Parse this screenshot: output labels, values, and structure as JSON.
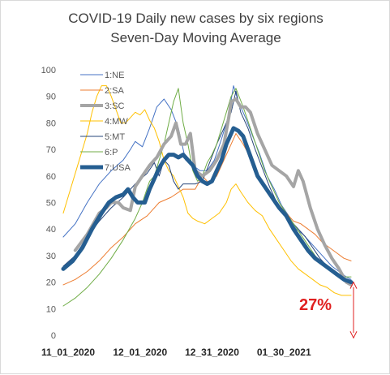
{
  "chart_data": {
    "type": "line",
    "title": "COVID-19 Daily new cases by six regions",
    "subtitle": "Seven-Day Moving Average",
    "ylim": [
      0,
      100
    ],
    "y_ticks": [
      0,
      10,
      20,
      30,
      40,
      50,
      60,
      70,
      80,
      90,
      100
    ],
    "x_tick_labels": [
      "11_01_2020",
      "12_01_2020",
      "12_31_2020",
      "01_30_2021"
    ],
    "x_tick_index": [
      0,
      30,
      60,
      90
    ],
    "x_range": [
      0,
      120
    ],
    "grid": false,
    "legend_position": "top-left",
    "annotation": {
      "text": "27%",
      "color": "#e02020"
    },
    "series": [
      {
        "name": "1:NE",
        "color": "#4472c4",
        "width": 1,
        "points": [
          [
            0,
            37
          ],
          [
            5,
            42
          ],
          [
            10,
            50
          ],
          [
            15,
            57
          ],
          [
            20,
            62
          ],
          [
            25,
            66
          ],
          [
            28,
            70
          ],
          [
            30,
            73
          ],
          [
            33,
            71
          ],
          [
            36,
            78
          ],
          [
            39,
            86
          ],
          [
            42,
            89
          ],
          [
            45,
            85
          ],
          [
            48,
            78
          ],
          [
            51,
            66
          ],
          [
            54,
            64
          ],
          [
            57,
            62
          ],
          [
            60,
            62
          ],
          [
            63,
            66
          ],
          [
            66,
            74
          ],
          [
            69,
            83
          ],
          [
            71,
            94
          ],
          [
            73,
            88
          ],
          [
            76,
            82
          ],
          [
            79,
            75
          ],
          [
            82,
            68
          ],
          [
            85,
            60
          ],
          [
            88,
            55
          ],
          [
            91,
            49
          ],
          [
            94,
            45
          ],
          [
            97,
            40
          ],
          [
            100,
            38
          ],
          [
            103,
            35
          ],
          [
            106,
            32
          ],
          [
            109,
            29
          ],
          [
            112,
            26
          ],
          [
            115,
            24
          ],
          [
            118,
            22
          ],
          [
            120,
            21
          ]
        ]
      },
      {
        "name": "2:SA",
        "color": "#ed7d31",
        "width": 1,
        "points": [
          [
            0,
            19
          ],
          [
            5,
            21
          ],
          [
            10,
            24
          ],
          [
            15,
            28
          ],
          [
            20,
            33
          ],
          [
            25,
            37
          ],
          [
            30,
            42
          ],
          [
            35,
            45
          ],
          [
            40,
            50
          ],
          [
            45,
            52
          ],
          [
            50,
            55
          ],
          [
            55,
            55
          ],
          [
            58,
            60
          ],
          [
            61,
            57
          ],
          [
            64,
            60
          ],
          [
            67,
            66
          ],
          [
            70,
            72
          ],
          [
            72,
            76
          ],
          [
            75,
            72
          ],
          [
            78,
            67
          ],
          [
            81,
            60
          ],
          [
            84,
            55
          ],
          [
            87,
            52
          ],
          [
            90,
            49
          ],
          [
            93,
            46
          ],
          [
            96,
            43
          ],
          [
            99,
            42
          ],
          [
            102,
            40
          ],
          [
            105,
            38
          ],
          [
            108,
            35
          ],
          [
            111,
            33
          ],
          [
            114,
            31
          ],
          [
            117,
            29
          ],
          [
            120,
            28
          ]
        ]
      },
      {
        "name": "3:SC",
        "color": "#a5a5a5",
        "width": 4,
        "points": [
          [
            5,
            32
          ],
          [
            10,
            38
          ],
          [
            15,
            46
          ],
          [
            18,
            48
          ],
          [
            20,
            50
          ],
          [
            23,
            50
          ],
          [
            25,
            48
          ],
          [
            28,
            47
          ],
          [
            30,
            56
          ],
          [
            33,
            60
          ],
          [
            36,
            64
          ],
          [
            39,
            67
          ],
          [
            42,
            72
          ],
          [
            45,
            75
          ],
          [
            47,
            80
          ],
          [
            49,
            72
          ],
          [
            51,
            72
          ],
          [
            53,
            76
          ],
          [
            55,
            62
          ],
          [
            58,
            60
          ],
          [
            61,
            62
          ],
          [
            64,
            66
          ],
          [
            67,
            72
          ],
          [
            69,
            82
          ],
          [
            70,
            88
          ],
          [
            72,
            89
          ],
          [
            74,
            86
          ],
          [
            76,
            86
          ],
          [
            78,
            84
          ],
          [
            81,
            76
          ],
          [
            84,
            70
          ],
          [
            87,
            64
          ],
          [
            90,
            62
          ],
          [
            93,
            60
          ],
          [
            96,
            56
          ],
          [
            98,
            62
          ],
          [
            100,
            58
          ],
          [
            103,
            48
          ],
          [
            106,
            40
          ],
          [
            109,
            34
          ],
          [
            112,
            29
          ],
          [
            115,
            25
          ],
          [
            118,
            20
          ],
          [
            120,
            19
          ]
        ]
      },
      {
        "name": "4:MW",
        "color": "#ffc000",
        "width": 1,
        "points": [
          [
            0,
            46
          ],
          [
            3,
            55
          ],
          [
            6,
            64
          ],
          [
            8,
            70
          ],
          [
            10,
            76
          ],
          [
            12,
            84
          ],
          [
            14,
            90
          ],
          [
            16,
            94
          ],
          [
            18,
            94
          ],
          [
            20,
            90
          ],
          [
            22,
            85
          ],
          [
            24,
            80
          ],
          [
            26,
            80
          ],
          [
            28,
            82
          ],
          [
            30,
            84
          ],
          [
            32,
            83
          ],
          [
            34,
            85
          ],
          [
            36,
            81
          ],
          [
            38,
            78
          ],
          [
            40,
            73
          ],
          [
            42,
            66
          ],
          [
            44,
            62
          ],
          [
            46,
            60
          ],
          [
            48,
            56
          ],
          [
            50,
            52
          ],
          [
            52,
            46
          ],
          [
            54,
            44
          ],
          [
            56,
            43
          ],
          [
            59,
            42
          ],
          [
            62,
            44
          ],
          [
            65,
            46
          ],
          [
            68,
            50
          ],
          [
            70,
            55
          ],
          [
            72,
            57
          ],
          [
            74,
            54
          ],
          [
            77,
            50
          ],
          [
            80,
            47
          ],
          [
            83,
            45
          ],
          [
            86,
            40
          ],
          [
            89,
            36
          ],
          [
            92,
            32
          ],
          [
            95,
            28
          ],
          [
            98,
            25
          ],
          [
            101,
            23
          ],
          [
            104,
            21
          ],
          [
            107,
            19
          ],
          [
            110,
            18
          ],
          [
            113,
            16
          ],
          [
            116,
            15
          ],
          [
            120,
            15
          ]
        ]
      },
      {
        "name": "5:MT",
        "color": "#264478",
        "width": 1,
        "points": [
          [
            0,
            26
          ],
          [
            5,
            30
          ],
          [
            10,
            37
          ],
          [
            15,
            43
          ],
          [
            20,
            48
          ],
          [
            25,
            52
          ],
          [
            30,
            57
          ],
          [
            35,
            61
          ],
          [
            38,
            65
          ],
          [
            40,
            60
          ],
          [
            42,
            66
          ],
          [
            44,
            64
          ],
          [
            46,
            58
          ],
          [
            48,
            55
          ],
          [
            50,
            57
          ],
          [
            52,
            57
          ],
          [
            55,
            57
          ],
          [
            58,
            58
          ],
          [
            61,
            65
          ],
          [
            64,
            72
          ],
          [
            67,
            78
          ],
          [
            70,
            84
          ],
          [
            72,
            92
          ],
          [
            74,
            84
          ],
          [
            77,
            78
          ],
          [
            80,
            70
          ],
          [
            83,
            63
          ],
          [
            86,
            56
          ],
          [
            89,
            50
          ],
          [
            92,
            46
          ],
          [
            95,
            43
          ],
          [
            98,
            40
          ],
          [
            101,
            37
          ],
          [
            104,
            33
          ],
          [
            107,
            29
          ],
          [
            110,
            26
          ],
          [
            113,
            23
          ],
          [
            116,
            21
          ],
          [
            119,
            19
          ],
          [
            120,
            19
          ]
        ]
      },
      {
        "name": "6:P",
        "color": "#70ad47",
        "width": 1,
        "points": [
          [
            0,
            11
          ],
          [
            5,
            14
          ],
          [
            10,
            18
          ],
          [
            15,
            23
          ],
          [
            20,
            29
          ],
          [
            25,
            36
          ],
          [
            30,
            44
          ],
          [
            33,
            50
          ],
          [
            36,
            58
          ],
          [
            38,
            60
          ],
          [
            40,
            66
          ],
          [
            42,
            72
          ],
          [
            44,
            80
          ],
          [
            46,
            88
          ],
          [
            48,
            93
          ],
          [
            50,
            80
          ],
          [
            52,
            72
          ],
          [
            54,
            62
          ],
          [
            56,
            58
          ],
          [
            58,
            60
          ],
          [
            60,
            65
          ],
          [
            62,
            68
          ],
          [
            64,
            72
          ],
          [
            66,
            78
          ],
          [
            68,
            84
          ],
          [
            70,
            90
          ],
          [
            72,
            93
          ],
          [
            75,
            86
          ],
          [
            78,
            78
          ],
          [
            81,
            70
          ],
          [
            84,
            62
          ],
          [
            87,
            56
          ],
          [
            90,
            50
          ],
          [
            93,
            46
          ],
          [
            96,
            42
          ],
          [
            99,
            38
          ],
          [
            102,
            34
          ],
          [
            105,
            30
          ],
          [
            108,
            27
          ],
          [
            111,
            25
          ],
          [
            114,
            23
          ],
          [
            117,
            22
          ],
          [
            120,
            22
          ]
        ]
      },
      {
        "name": "7:USA",
        "color": "#255e91",
        "width": 5,
        "points": [
          [
            0,
            25
          ],
          [
            4,
            28
          ],
          [
            8,
            33
          ],
          [
            12,
            40
          ],
          [
            16,
            46
          ],
          [
            19,
            50
          ],
          [
            22,
            52
          ],
          [
            25,
            53
          ],
          [
            27,
            55
          ],
          [
            29,
            52
          ],
          [
            31,
            50
          ],
          [
            34,
            50
          ],
          [
            36,
            55
          ],
          [
            38,
            59
          ],
          [
            40,
            63
          ],
          [
            42,
            66
          ],
          [
            44,
            68
          ],
          [
            46,
            68
          ],
          [
            48,
            67
          ],
          [
            50,
            68
          ],
          [
            52,
            66
          ],
          [
            54,
            64
          ],
          [
            56,
            60
          ],
          [
            58,
            58
          ],
          [
            60,
            57
          ],
          [
            62,
            58
          ],
          [
            64,
            62
          ],
          [
            66,
            66
          ],
          [
            68,
            72
          ],
          [
            70,
            76
          ],
          [
            71,
            78
          ],
          [
            73,
            77
          ],
          [
            75,
            75
          ],
          [
            77,
            70
          ],
          [
            79,
            65
          ],
          [
            81,
            60
          ],
          [
            84,
            56
          ],
          [
            87,
            52
          ],
          [
            90,
            48
          ],
          [
            93,
            45
          ],
          [
            96,
            40
          ],
          [
            99,
            36
          ],
          [
            102,
            32
          ],
          [
            105,
            29
          ],
          [
            108,
            27
          ],
          [
            111,
            25
          ],
          [
            114,
            23
          ],
          [
            117,
            21
          ],
          [
            120,
            20
          ]
        ]
      }
    ]
  }
}
